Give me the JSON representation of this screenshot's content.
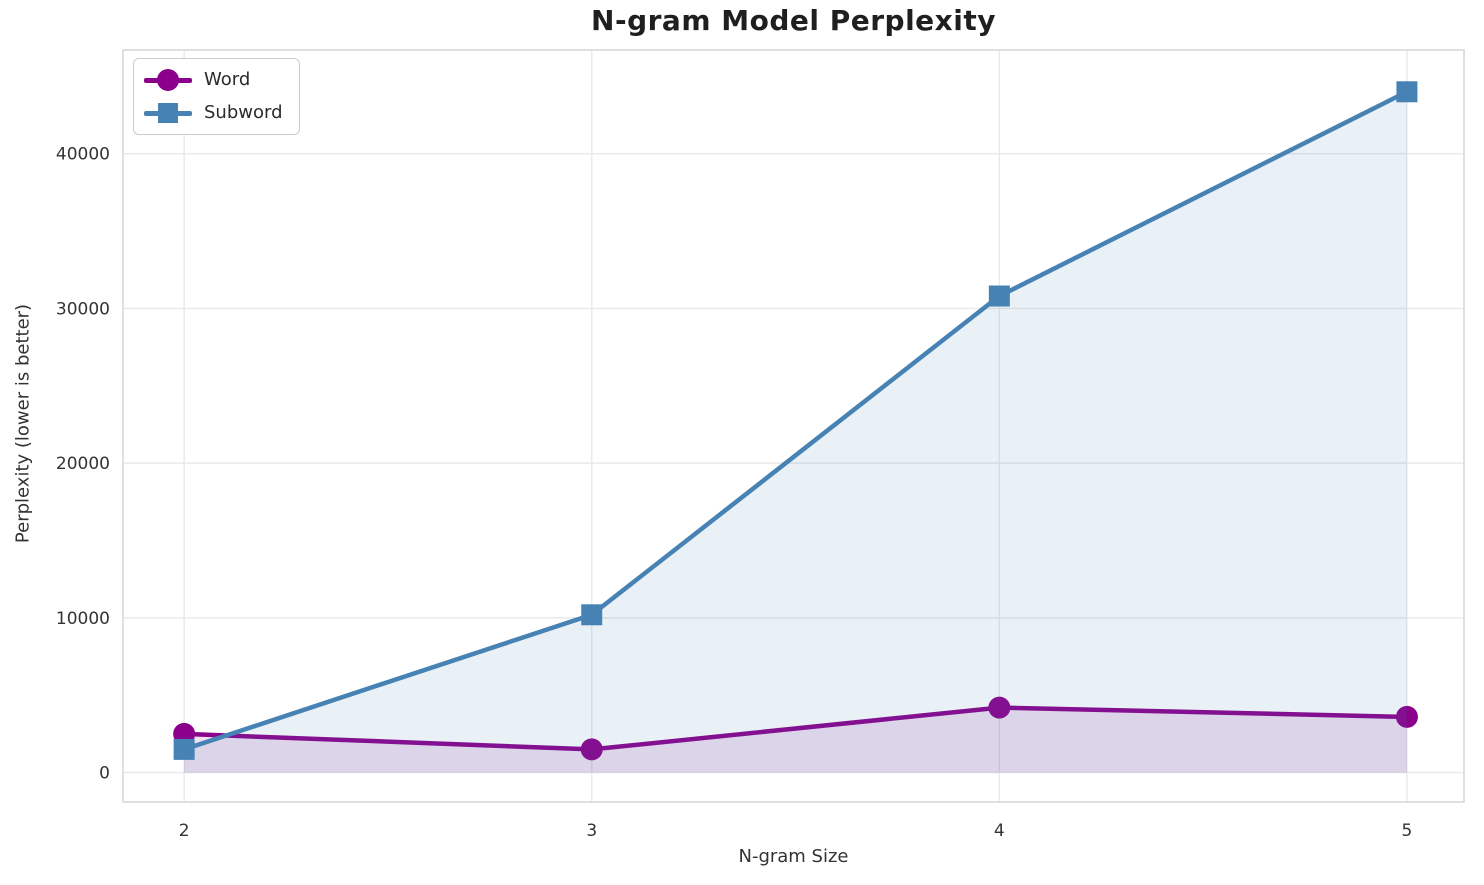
{
  "title": "N-gram Model Perplexity",
  "chart_data": {
    "type": "line",
    "title": "N-gram Model Perplexity",
    "xlabel": "N-gram Size",
    "ylabel": "Perplexity (lower is better)",
    "x": [
      2,
      3,
      4,
      5
    ],
    "series": [
      {
        "name": "Word",
        "values": [
          2500,
          1500,
          4200,
          3600
        ],
        "color": "#8B008B",
        "marker": "circle",
        "fill_alpha": 0.12
      },
      {
        "name": "Subword",
        "values": [
          1500,
          10200,
          30800,
          44000
        ],
        "color": "#4682B4",
        "marker": "square",
        "fill_alpha": 0.12
      }
    ],
    "x_ticks": [
      "2",
      "3",
      "4",
      "5"
    ],
    "x_tick_values": [
      2,
      3,
      4,
      5
    ],
    "y_ticks": [
      "0",
      "10000",
      "20000",
      "30000",
      "40000"
    ],
    "y_tick_values": [
      0,
      10000,
      20000,
      30000,
      40000
    ],
    "xlim": [
      1.85,
      5.14
    ],
    "ylim": [
      -1900,
      46700
    ],
    "grid": true,
    "fill_to_zero": true,
    "legend_position": "upper left",
    "colors": {
      "grid": "#e9e9e9",
      "spine": "#d9d9d9",
      "tick_text": "#333333",
      "title_text": "#1f1f1f"
    }
  }
}
